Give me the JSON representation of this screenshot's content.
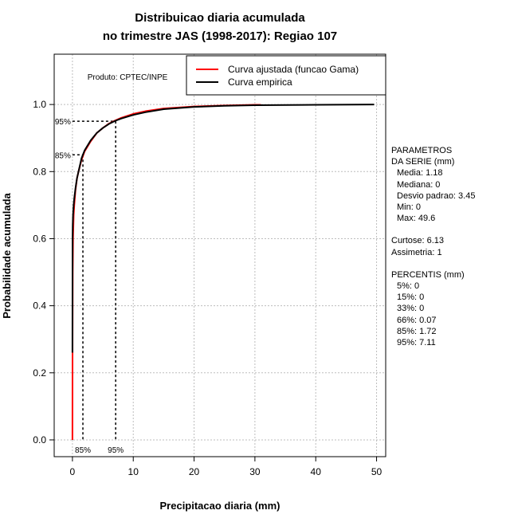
{
  "chart_data": {
    "type": "line",
    "title": "Distribuicao diaria acumulada",
    "subtitle": "no trimestre JAS (1998-2017): Regiao 107",
    "xlabel": "Precipitacao diaria (mm)",
    "ylabel": "Probabilidade acumulada",
    "xlim": [
      -3,
      51.5
    ],
    "ylim": [
      -0.05,
      1.15
    ],
    "x_ticks": [
      0,
      10,
      20,
      30,
      40,
      50
    ],
    "y_ticks": [
      0.0,
      0.2,
      0.4,
      0.6,
      0.8,
      1.0
    ],
    "x_tick_labels": [
      "0",
      "10",
      "20",
      "30",
      "40",
      "50"
    ],
    "y_tick_labels": [
      "0.0",
      "0.2",
      "0.4",
      "0.6",
      "0.8",
      "1.0"
    ],
    "grid": true,
    "product_label": "Produto: CPTEC/INPE",
    "legend_position": "top-right",
    "series": [
      {
        "name": "Curva ajustada (funcao Gama)",
        "color": "#ff0000",
        "x": [
          0,
          0.02,
          0.05,
          0.1,
          0.2,
          0.3,
          0.5,
          0.75,
          1,
          1.5,
          2,
          3,
          4,
          5,
          6,
          7,
          8,
          10,
          12,
          15,
          20,
          25,
          30,
          31
        ],
        "y": [
          0.0,
          0.3,
          0.5,
          0.6,
          0.67,
          0.7,
          0.745,
          0.78,
          0.8,
          0.835,
          0.86,
          0.89,
          0.915,
          0.93,
          0.943,
          0.952,
          0.96,
          0.972,
          0.98,
          0.988,
          0.994,
          0.997,
          0.999,
          0.999
        ]
      },
      {
        "name": "Curva empirica",
        "color": "#000000",
        "x": [
          0,
          0.02,
          0.05,
          0.1,
          0.2,
          0.3,
          0.5,
          0.75,
          1,
          1.5,
          2,
          3,
          4,
          5,
          6,
          7,
          8,
          10,
          12,
          15,
          20,
          25,
          30,
          40,
          49.6
        ],
        "y": [
          0.26,
          0.6,
          0.64,
          0.67,
          0.7,
          0.72,
          0.75,
          0.78,
          0.8,
          0.84,
          0.863,
          0.893,
          0.915,
          0.93,
          0.942,
          0.951,
          0.958,
          0.969,
          0.977,
          0.986,
          0.993,
          0.996,
          0.998,
          0.999,
          1.0
        ]
      }
    ],
    "percentile_markers": [
      {
        "label": "85%",
        "x": 1.72,
        "y": 0.85
      },
      {
        "label": "95%",
        "x": 7.11,
        "y": 0.95
      }
    ]
  },
  "stats": {
    "header1": "PARAMETROS",
    "header2": "DA SERIE (mm)",
    "media": "Media: 1.18",
    "mediana": "Mediana: 0",
    "desvio": "Desvio padrao: 3.45",
    "min": "Min: 0",
    "max": "Max: 49.6",
    "curtose": "Curtose: 6.13",
    "assimetria": "Assimetria: 1",
    "percentis_header": "PERCENTIS (mm)",
    "p5": "5%: 0",
    "p15": "15%: 0",
    "p33": "33%: 0",
    "p66": "66%: 0.07",
    "p85": "85%: 1.72",
    "p95": "95%: 7.11"
  }
}
